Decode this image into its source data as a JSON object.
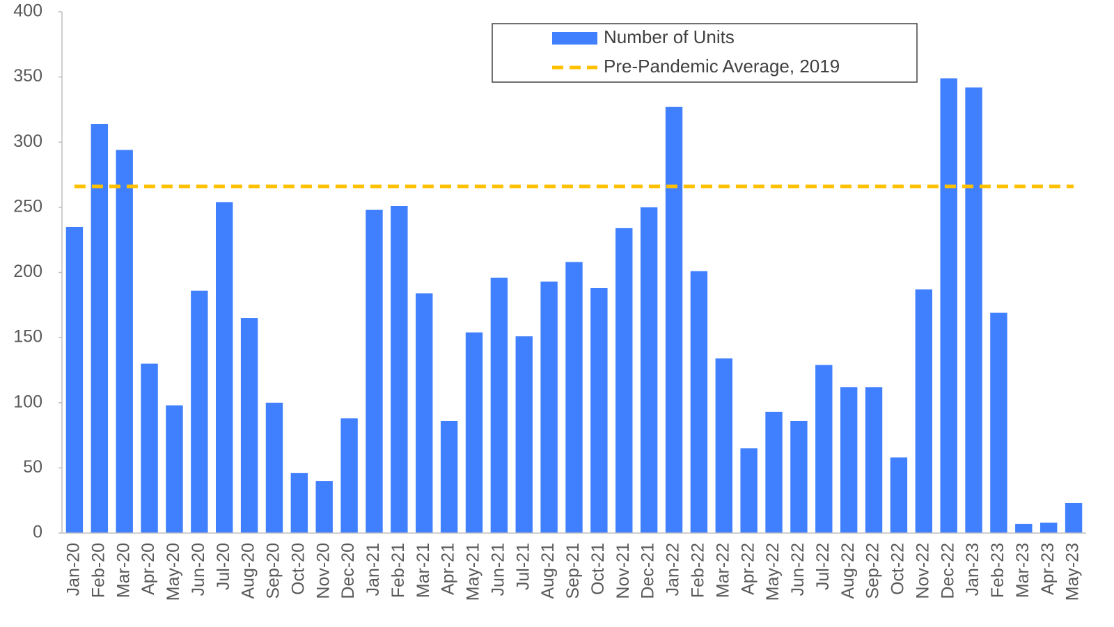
{
  "chart_data": {
    "type": "bar",
    "categories": [
      "Jan-20",
      "Feb-20",
      "Mar-20",
      "Apr-20",
      "May-20",
      "Jun-20",
      "Jul-20",
      "Aug-20",
      "Sep-20",
      "Oct-20",
      "Nov-20",
      "Dec-20",
      "Jan-21",
      "Feb-21",
      "Mar-21",
      "Apr-21",
      "May-21",
      "Jun-21",
      "Jul-21",
      "Aug-21",
      "Sep-21",
      "Oct-21",
      "Nov-21",
      "Dec-21",
      "Jan-22",
      "Feb-22",
      "Mar-22",
      "Apr-22",
      "May-22",
      "Jun-22",
      "Jul-22",
      "Aug-22",
      "Sep-22",
      "Oct-22",
      "Nov-22",
      "Dec-22",
      "Jan-23",
      "Feb-23",
      "Mar-23",
      "Apr-23",
      "May-23"
    ],
    "series": [
      {
        "name": "Number of Units",
        "type": "bar",
        "color": "#4080ff",
        "values": [
          235,
          314,
          294,
          130,
          98,
          186,
          254,
          165,
          100,
          46,
          40,
          88,
          248,
          251,
          184,
          86,
          154,
          196,
          151,
          193,
          208,
          188,
          234,
          250,
          327,
          201,
          134,
          65,
          93,
          86,
          129,
          112,
          112,
          58,
          187,
          349,
          342,
          169,
          7,
          8,
          23
        ]
      },
      {
        "name": "Pre-Pandemic Average, 2019",
        "type": "line",
        "dashed": true,
        "color": "#ffc000",
        "values": [
          266,
          266,
          266,
          266,
          266,
          266,
          266,
          266,
          266,
          266,
          266,
          266,
          266,
          266,
          266,
          266,
          266,
          266,
          266,
          266,
          266,
          266,
          266,
          266,
          266,
          266,
          266,
          266,
          266,
          266,
          266,
          266,
          266,
          266,
          266,
          266,
          266,
          266,
          266,
          266,
          266
        ]
      }
    ],
    "ylim": [
      0,
      400
    ],
    "yticks": [
      0,
      50,
      100,
      150,
      200,
      250,
      300,
      350,
      400
    ],
    "grid": false,
    "legend": "top-right"
  }
}
